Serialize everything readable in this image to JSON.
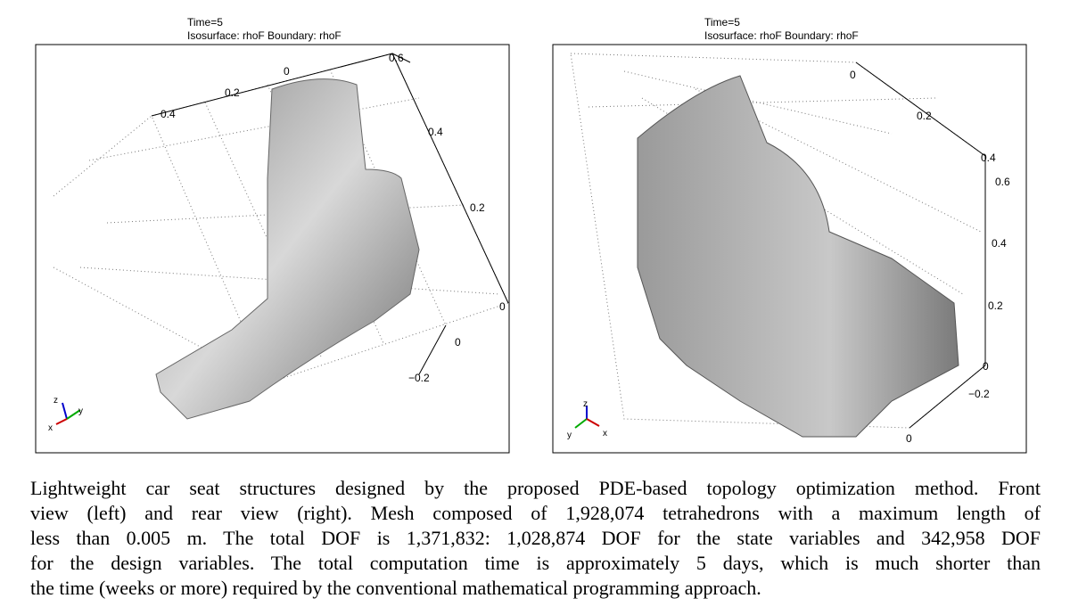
{
  "panels": [
    {
      "header": [
        "Time=5",
        "Isosurface: rhoF   Boundary: rhoF"
      ],
      "axis_labels": [
        "0.6",
        "0",
        "0.2",
        "0.4",
        "0.4",
        "0.2",
        "0",
        "0",
        "−0.2"
      ],
      "triad": [
        "z",
        "y",
        "x"
      ]
    },
    {
      "header": [
        "Time=5",
        "Isosurface: rhoF   Boundary: rhoF"
      ],
      "axis_labels": [
        "0",
        "0.2",
        "0.4",
        "0.6",
        "0.4",
        "0.2",
        "0",
        "−0.2",
        "0"
      ],
      "triad": [
        "z",
        "y",
        "x"
      ]
    }
  ],
  "caption": [
    "Lightweight car seat structures designed by the proposed PDE-based topology optimization method. Front",
    "view (left) and rear view (right). Mesh composed of 1,928,074 tetrahedrons with a maximum length of",
    "less than 0.005 m. The total DOF is 1,371,832: 1,028,874 DOF for the state variables and 342,958 DOF",
    "for the design variables. The total computation time is approximately 5 days, which is much shorter than",
    "the time (weeks or more) required by the conventional mathematical programming approach."
  ]
}
